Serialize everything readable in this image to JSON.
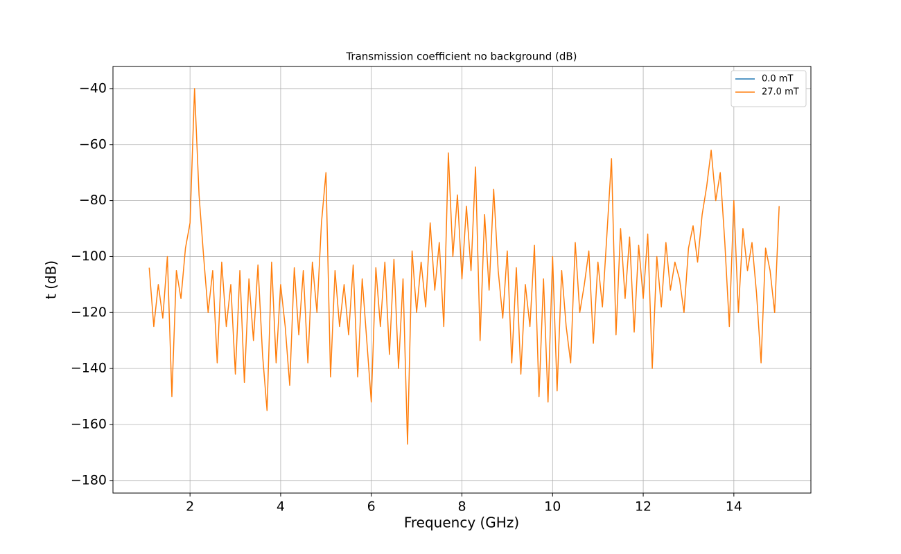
{
  "chart_data": {
    "type": "line",
    "title": "Transmission coefficient no background (dB)",
    "x_label": "Frequency (GHz)",
    "y_label": "t (dB)",
    "xlim": [
      0.3,
      15.7
    ],
    "ylim": [
      -184.5,
      -32.1
    ],
    "xticks": [
      2,
      4,
      6,
      8,
      10,
      12,
      14
    ],
    "yticks": [
      {
        "value": -40,
        "label": "−40"
      },
      {
        "value": -60,
        "label": "−60"
      },
      {
        "value": -80,
        "label": "−80"
      },
      {
        "value": -100,
        "label": "−100"
      },
      {
        "value": -120,
        "label": "−120"
      },
      {
        "value": -140,
        "label": "−140"
      },
      {
        "value": -160,
        "label": "−160"
      },
      {
        "value": -180,
        "label": "−180"
      }
    ],
    "grid": true,
    "legend": "upper right",
    "x": [
      1.1,
      1.2,
      1.3,
      1.4,
      1.5,
      1.6,
      1.7,
      1.8,
      1.9,
      2.0,
      2.1,
      2.2,
      2.3,
      2.4,
      2.5,
      2.6,
      2.7,
      2.8,
      2.9,
      3.0,
      3.1,
      3.2,
      3.3,
      3.4,
      3.5,
      3.6,
      3.7,
      3.8,
      3.9,
      4.0,
      4.1,
      4.2,
      4.3,
      4.4,
      4.5,
      4.6,
      4.7,
      4.8,
      4.9,
      5.0,
      5.1,
      5.2,
      5.3,
      5.4,
      5.5,
      5.6,
      5.7,
      5.8,
      5.9,
      6.0,
      6.1,
      6.2,
      6.3,
      6.4,
      6.5,
      6.6,
      6.7,
      6.8,
      6.9,
      7.0,
      7.1,
      7.2,
      7.3,
      7.4,
      7.5,
      7.6,
      7.7,
      7.8,
      7.9,
      8.0,
      8.1,
      8.2,
      8.3,
      8.4,
      8.5,
      8.6,
      8.7,
      8.8,
      8.9,
      9.0,
      9.1,
      9.2,
      9.3,
      9.4,
      9.5,
      9.6,
      9.7,
      9.8,
      9.9,
      10.0,
      10.1,
      10.2,
      10.3,
      10.4,
      10.5,
      10.6,
      10.7,
      10.8,
      10.9,
      11.0,
      11.1,
      11.2,
      11.3,
      11.4,
      11.5,
      11.6,
      11.7,
      11.8,
      11.9,
      12.0,
      12.1,
      12.2,
      12.3,
      12.4,
      12.5,
      12.6,
      12.7,
      12.8,
      12.9,
      13.0,
      13.1,
      13.2,
      13.3,
      13.4,
      13.5,
      13.6,
      13.7,
      13.8,
      13.9,
      14.0,
      14.1,
      14.2,
      14.3,
      14.4,
      14.5,
      14.6,
      14.7,
      14.8,
      14.9,
      15.0
    ],
    "series": [
      {
        "name": "0.0 mT",
        "color": "#1f77b4",
        "values": [
          null,
          null,
          null,
          null,
          null,
          null,
          null,
          null,
          null,
          null,
          null,
          null,
          null,
          null,
          null,
          null,
          null,
          null,
          null,
          null,
          null,
          null,
          null,
          null,
          null,
          null,
          null,
          null,
          null,
          null,
          null,
          null,
          null,
          null,
          null,
          null,
          null,
          null,
          null,
          null,
          null,
          null,
          null,
          null,
          null,
          null,
          null,
          null,
          null,
          null,
          null,
          null,
          null,
          null,
          null,
          null,
          null,
          null,
          null,
          null,
          null,
          null,
          null,
          null,
          null,
          null,
          null,
          null,
          null,
          null,
          null,
          null,
          null,
          null,
          null,
          null,
          null,
          null,
          null,
          null,
          null,
          null,
          null,
          null,
          null,
          null,
          null,
          null,
          null,
          null,
          null,
          null,
          null,
          null,
          null,
          null,
          null,
          null,
          null,
          null,
          null,
          null,
          null,
          null,
          null,
          null,
          null,
          null,
          null,
          null,
          null,
          null,
          null,
          null,
          null,
          null,
          null,
          null,
          null,
          null,
          null,
          null,
          null,
          null,
          null,
          null,
          null,
          null,
          null,
          null,
          null,
          null,
          null,
          null,
          null,
          null,
          null,
          null,
          null,
          null
        ]
      },
      {
        "name": "27.0 mT",
        "color": "#ff7f0e",
        "values": [
          -104,
          -125,
          -110,
          -122,
          -100,
          -150,
          -105,
          -115,
          -97,
          -88,
          -40,
          -78,
          -100,
          -120,
          -105,
          -138,
          -102,
          -125,
          -110,
          -142,
          -105,
          -145,
          -108,
          -130,
          -103,
          -135,
          -155,
          -102,
          -138,
          -110,
          -125,
          -146,
          -104,
          -128,
          -105,
          -138,
          -102,
          -120,
          -88,
          -70,
          -143,
          -105,
          -125,
          -110,
          -128,
          -103,
          -143,
          -108,
          -130,
          -152,
          -104,
          -125,
          -102,
          -135,
          -101,
          -140,
          -108,
          -167,
          -98,
          -120,
          -102,
          -118,
          -88,
          -112,
          -95,
          -125,
          -63,
          -100,
          -78,
          -108,
          -82,
          -105,
          -68,
          -130,
          -85,
          -112,
          -76,
          -105,
          -122,
          -98,
          -138,
          -104,
          -142,
          -110,
          -125,
          -96,
          -150,
          -108,
          -152,
          -100,
          -148,
          -105,
          -125,
          -138,
          -95,
          -120,
          -110,
          -98,
          -131,
          -102,
          -118,
          -92,
          -65,
          -128,
          -90,
          -115,
          -93,
          -127,
          -96,
          -115,
          -92,
          -140,
          -100,
          -118,
          -95,
          -112,
          -102,
          -108,
          -120,
          -97,
          -89,
          -102,
          -85,
          -75,
          -62,
          -80,
          -70,
          -95,
          -125,
          -80,
          -120,
          -90,
          -105,
          -95,
          -113,
          -138,
          -97,
          -105,
          -120,
          -82
        ]
      }
    ]
  }
}
